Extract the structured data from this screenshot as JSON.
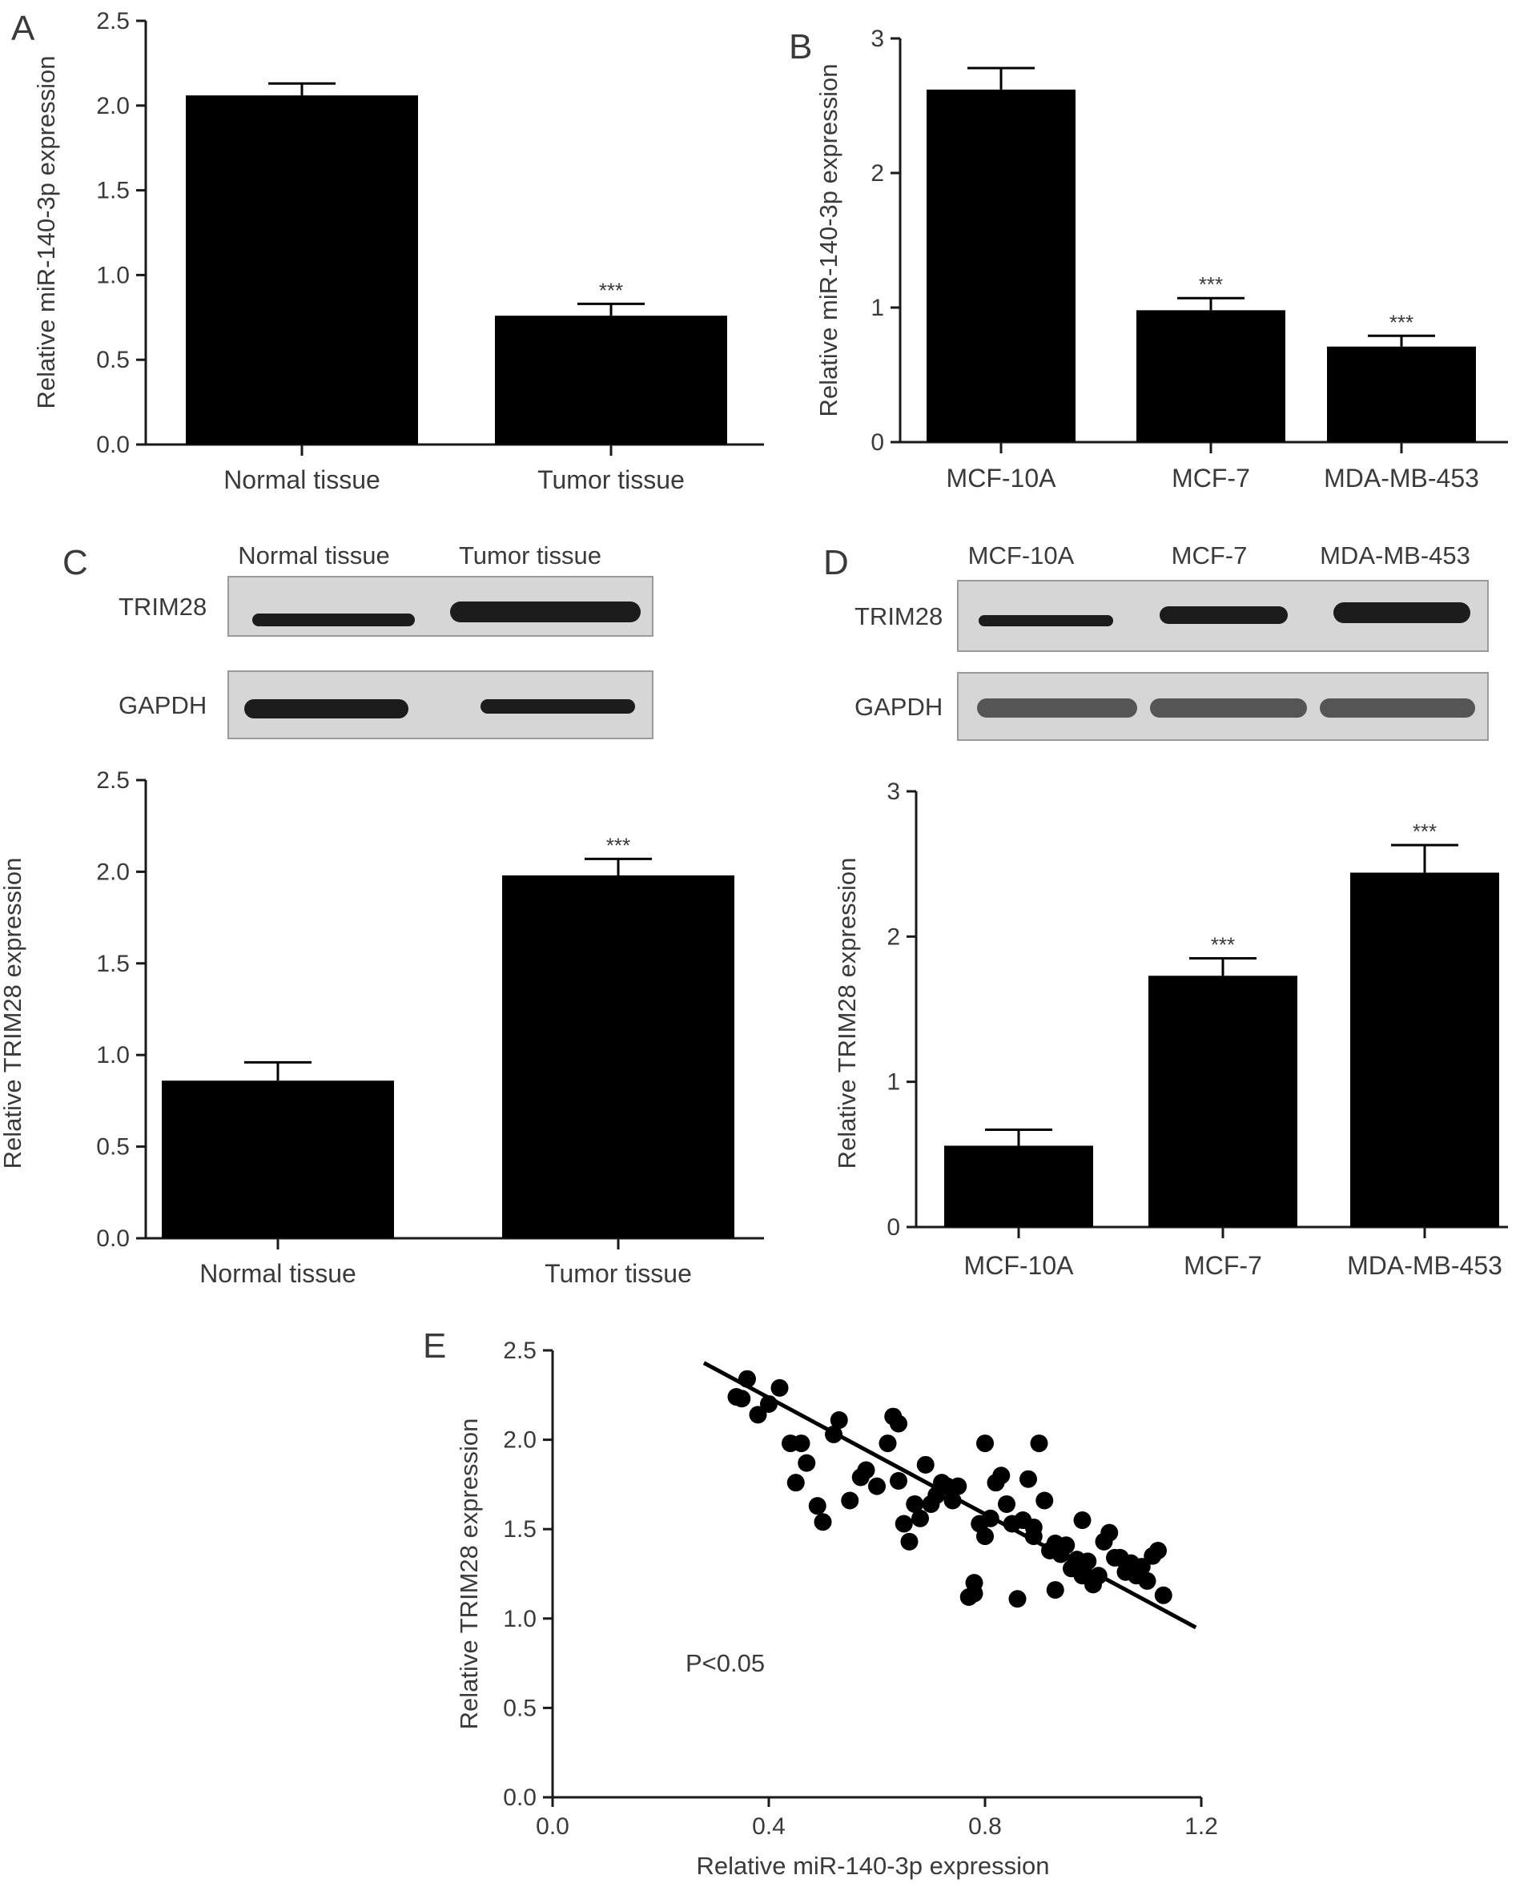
{
  "chart_data": [
    {
      "panel": "A",
      "type": "bar",
      "ylabel": "Relative miR-140-3p expression",
      "categories": [
        "Normal tissue",
        "Tumor tissue"
      ],
      "values": [
        2.06,
        0.76
      ],
      "errors": [
        0.07,
        0.07
      ],
      "significance": [
        "",
        "***"
      ],
      "ylim": [
        0,
        2.5
      ],
      "yticks": [
        "0.0",
        "0.5",
        "1.0",
        "1.5",
        "2.0",
        "2.5"
      ]
    },
    {
      "panel": "B",
      "type": "bar",
      "ylabel": "Relative miR-140-3p expression",
      "categories": [
        "MCF-10A",
        "MCF-7",
        "MDA-MB-453"
      ],
      "values": [
        2.62,
        0.98,
        0.71
      ],
      "errors": [
        0.16,
        0.09,
        0.08
      ],
      "significance": [
        "",
        "***",
        "***"
      ],
      "ylim": [
        0,
        3
      ],
      "yticks": [
        "0",
        "1",
        "2",
        "3"
      ]
    },
    {
      "panel": "C",
      "type": "bar",
      "ylabel": "Relative TRIM28 expression",
      "categories": [
        "Normal tissue",
        "Tumor tissue"
      ],
      "values": [
        0.86,
        1.98
      ],
      "errors": [
        0.1,
        0.09
      ],
      "significance": [
        "",
        "***"
      ],
      "ylim": [
        0,
        2.5
      ],
      "yticks": [
        "0.0",
        "0.5",
        "1.0",
        "1.5",
        "2.0",
        "2.5"
      ],
      "blot": {
        "lanes": [
          "Normal tissue",
          "Tumor tissue"
        ],
        "rows": [
          "TRIM28",
          "GAPDH"
        ]
      }
    },
    {
      "panel": "D",
      "type": "bar",
      "ylabel": "Relative TRIM28 expression",
      "categories": [
        "MCF-10A",
        "MCF-7",
        "MDA-MB-453"
      ],
      "values": [
        0.56,
        1.73,
        2.44
      ],
      "errors": [
        0.11,
        0.12,
        0.19
      ],
      "significance": [
        "",
        "***",
        "***"
      ],
      "ylim": [
        0,
        3
      ],
      "yticks": [
        "0",
        "1",
        "2",
        "3"
      ],
      "blot": {
        "lanes": [
          "MCF-10A",
          "MCF-7",
          "MDA-MB-453"
        ],
        "rows": [
          "TRIM28",
          "GAPDH"
        ]
      }
    },
    {
      "panel": "E",
      "type": "scatter",
      "xlabel": "Relative miR-140-3p expression",
      "ylabel": "Relative TRIM28 expression",
      "xlim": [
        0,
        1.2
      ],
      "ylim": [
        0,
        2.5
      ],
      "xticks": [
        "0.0",
        "0.4",
        "0.8",
        "1.2"
      ],
      "yticks": [
        "0.0",
        "0.5",
        "1.0",
        "1.5",
        "2.0",
        "2.5"
      ],
      "annotation": "P<0.05",
      "fit_line": {
        "x": [
          0.28,
          1.19
        ],
        "y": [
          2.43,
          0.95
        ]
      },
      "points": [
        [
          0.34,
          2.24
        ],
        [
          0.35,
          2.23
        ],
        [
          0.36,
          2.34
        ],
        [
          0.38,
          2.14
        ],
        [
          0.4,
          2.2
        ],
        [
          0.42,
          2.29
        ],
        [
          0.44,
          1.98
        ],
        [
          0.46,
          1.98
        ],
        [
          0.45,
          1.76
        ],
        [
          0.47,
          1.87
        ],
        [
          0.49,
          1.63
        ],
        [
          0.5,
          1.54
        ],
        [
          0.52,
          2.03
        ],
        [
          0.53,
          2.11
        ],
        [
          0.55,
          1.66
        ],
        [
          0.57,
          1.79
        ],
        [
          0.58,
          1.83
        ],
        [
          0.6,
          1.74
        ],
        [
          0.62,
          1.98
        ],
        [
          0.63,
          2.13
        ],
        [
          0.64,
          2.09
        ],
        [
          0.64,
          1.77
        ],
        [
          0.65,
          1.53
        ],
        [
          0.66,
          1.43
        ],
        [
          0.67,
          1.64
        ],
        [
          0.68,
          1.56
        ],
        [
          0.69,
          1.86
        ],
        [
          0.7,
          1.64
        ],
        [
          0.71,
          1.69
        ],
        [
          0.72,
          1.76
        ],
        [
          0.73,
          1.74
        ],
        [
          0.74,
          1.66
        ],
        [
          0.75,
          1.74
        ],
        [
          0.77,
          1.12
        ],
        [
          0.78,
          1.14
        ],
        [
          0.78,
          1.2
        ],
        [
          0.79,
          1.53
        ],
        [
          0.8,
          1.46
        ],
        [
          0.8,
          1.98
        ],
        [
          0.81,
          1.56
        ],
        [
          0.82,
          1.76
        ],
        [
          0.83,
          1.8
        ],
        [
          0.84,
          1.64
        ],
        [
          0.85,
          1.53
        ],
        [
          0.86,
          1.11
        ],
        [
          0.87,
          1.55
        ],
        [
          0.88,
          1.78
        ],
        [
          0.89,
          1.46
        ],
        [
          0.89,
          1.51
        ],
        [
          0.9,
          1.98
        ],
        [
          0.91,
          1.66
        ],
        [
          0.92,
          1.38
        ],
        [
          0.93,
          1.42
        ],
        [
          0.93,
          1.16
        ],
        [
          0.94,
          1.36
        ],
        [
          0.95,
          1.41
        ],
        [
          0.96,
          1.28
        ],
        [
          0.97,
          1.33
        ],
        [
          0.98,
          1.55
        ],
        [
          0.98,
          1.24
        ],
        [
          0.99,
          1.32
        ],
        [
          1.0,
          1.19
        ],
        [
          1.01,
          1.24
        ],
        [
          1.02,
          1.43
        ],
        [
          1.03,
          1.48
        ],
        [
          1.04,
          1.34
        ],
        [
          1.05,
          1.34
        ],
        [
          1.06,
          1.26
        ],
        [
          1.07,
          1.31
        ],
        [
          1.08,
          1.24
        ],
        [
          1.09,
          1.29
        ],
        [
          1.1,
          1.21
        ],
        [
          1.11,
          1.35
        ],
        [
          1.12,
          1.38
        ],
        [
          1.13,
          1.13
        ]
      ]
    }
  ]
}
